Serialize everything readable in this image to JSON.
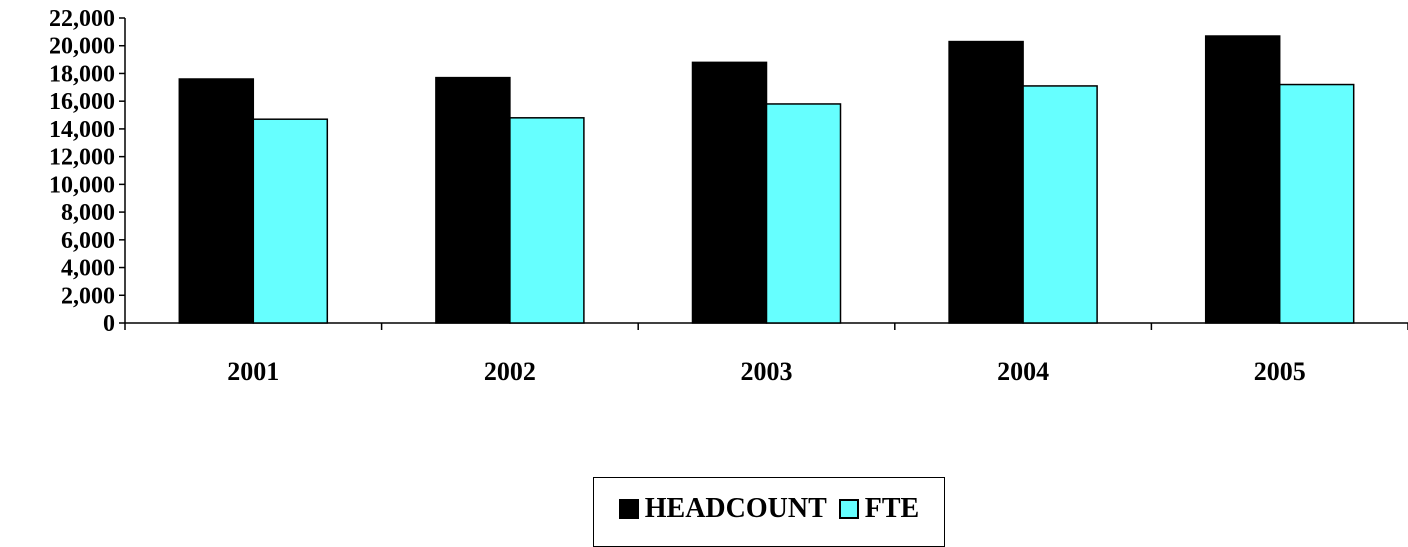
{
  "chart_data": {
    "type": "bar",
    "categories": [
      "2001",
      "2002",
      "2003",
      "2004",
      "2005"
    ],
    "series": [
      {
        "name": "HEADCOUNT",
        "color": "#000000",
        "values": [
          17600,
          17700,
          18800,
          20300,
          20700
        ]
      },
      {
        "name": "FTE",
        "color": "#66FFFF",
        "values": [
          14700,
          14800,
          15800,
          17100,
          17200
        ]
      }
    ],
    "ylim": [
      0,
      22000
    ],
    "yticks": [
      "0",
      "2,000",
      "4,000",
      "6,000",
      "8,000",
      "10,000",
      "12,000",
      "14,000",
      "16,000",
      "18,000",
      "20,000",
      "22,000"
    ],
    "title": "",
    "xlabel": "",
    "ylabel": "",
    "grid": false,
    "legend_position": "bottom-center"
  }
}
